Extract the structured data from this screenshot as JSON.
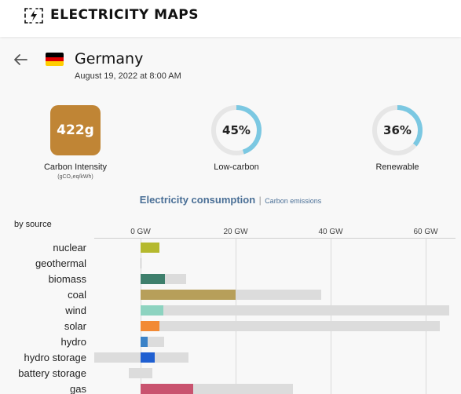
{
  "app": {
    "title": "ELECTRICITY MAPS",
    "logo_icon": "lightning-bolt-logo-icon"
  },
  "zone": {
    "name": "Germany",
    "date": "August 19, 2022 at 8:00 AM",
    "flag_colors": [
      "#000000",
      "#dd0000",
      "#ffce00"
    ]
  },
  "metrics": {
    "carbon_intensity": {
      "value": "422g",
      "label": "Carbon Intensity",
      "unit": "(gCO₂eq/kWh)",
      "color": "#c08535"
    },
    "low_carbon": {
      "value": "45%",
      "fraction": 0.45,
      "label": "Low-carbon"
    },
    "renewable": {
      "value": "36%",
      "fraction": 0.36,
      "label": "Renewable"
    },
    "gauge_color": "#7bc8e2",
    "gauge_track_color": "#e6e6e6"
  },
  "tabs": {
    "active": "Electricity consumption",
    "separator": "|",
    "other": "Carbon emissions"
  },
  "chart_data": {
    "type": "bar",
    "title": "Electricity consumption",
    "group_label": "by source",
    "xaxis": {
      "ticks": [
        0,
        20,
        40,
        60
      ],
      "tick_labels": [
        "0 GW",
        "20 GW",
        "40 GW",
        "60 GW"
      ],
      "xlim": [
        -10,
        65
      ],
      "grid": true
    },
    "categories": [
      "nuclear",
      "geothermal",
      "biomass",
      "coal",
      "wind",
      "solar",
      "hydro",
      "hydro storage",
      "battery storage",
      "gas"
    ],
    "series": [
      {
        "role": "production",
        "values": [
          4,
          0,
          5.2,
          20,
          4.8,
          4,
          1.5,
          3,
          0,
          11
        ]
      },
      {
        "role": "capacity",
        "values": [
          4,
          0,
          9.6,
          38,
          65,
          63,
          5,
          10,
          2.5,
          32
        ]
      },
      {
        "role": "negative-capacity",
        "values": [
          0,
          0,
          0,
          0,
          0,
          0,
          0,
          -10,
          -2.5,
          0
        ]
      }
    ],
    "colors": {
      "nuclear": "#b5b92e",
      "geothermal": "#bbbbbb",
      "biomass": "#3e7f6c",
      "coal": "#b79f5a",
      "wind": "#8dd3c0",
      "solar": "#f28a35",
      "hydro": "#3b82c7",
      "hydro storage": "#1f5fd1",
      "battery storage": "#777777",
      "gas": "#c9536f",
      "capacity": "#dcdcdc"
    }
  }
}
